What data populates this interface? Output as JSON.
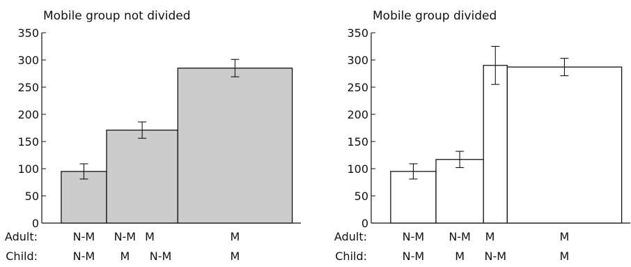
{
  "chart_data": [
    {
      "type": "bar",
      "title": "Mobile group not divided",
      "ylim": [
        0,
        350
      ],
      "yticks": [
        0,
        50,
        100,
        150,
        200,
        250,
        300,
        350
      ],
      "x_range": [
        0,
        12
      ],
      "bars": [
        {
          "x_start": 0.9,
          "x_end": 3.0,
          "value": 95,
          "error": 14
        },
        {
          "x_start": 3.0,
          "x_end": 6.3,
          "value": 171,
          "error": 15
        },
        {
          "x_start": 6.3,
          "x_end": 11.6,
          "value": 285,
          "error": 16
        }
      ],
      "bar_color": "#cccccc",
      "row_labels": [
        "Adult:",
        "Child:"
      ],
      "category_labels": [
        {
          "row": 0,
          "x": 1.95,
          "text": "N-M"
        },
        {
          "row": 0,
          "x": 3.85,
          "text": "N-M"
        },
        {
          "row": 0,
          "x": 5.0,
          "text": "M"
        },
        {
          "row": 0,
          "x": 8.95,
          "text": "M"
        },
        {
          "row": 1,
          "x": 1.95,
          "text": "N-M"
        },
        {
          "row": 1,
          "x": 3.85,
          "text": "M"
        },
        {
          "row": 1,
          "x": 5.5,
          "text": "N-M"
        },
        {
          "row": 1,
          "x": 8.95,
          "text": "M"
        }
      ]
    },
    {
      "type": "bar",
      "title": "Mobile group divided",
      "ylim": [
        0,
        350
      ],
      "yticks": [
        0,
        50,
        100,
        150,
        200,
        250,
        300,
        350
      ],
      "x_range": [
        0,
        12
      ],
      "bars": [
        {
          "x_start": 0.9,
          "x_end": 3.0,
          "value": 95,
          "error": 14
        },
        {
          "x_start": 3.0,
          "x_end": 5.2,
          "value": 117,
          "error": 15
        },
        {
          "x_start": 5.2,
          "x_end": 6.3,
          "value": 290,
          "error": 35
        },
        {
          "x_start": 6.3,
          "x_end": 11.6,
          "value": 287,
          "error": 16
        }
      ],
      "bar_color": "#ffffff",
      "row_labels": [
        "Adult:",
        "Child:"
      ],
      "category_labels": [
        {
          "row": 0,
          "x": 1.95,
          "text": "N-M"
        },
        {
          "row": 0,
          "x": 4.1,
          "text": "N-M"
        },
        {
          "row": 0,
          "x": 5.5,
          "text": "M"
        },
        {
          "row": 0,
          "x": 8.95,
          "text": "M"
        },
        {
          "row": 1,
          "x": 1.95,
          "text": "N-M"
        },
        {
          "row": 1,
          "x": 4.1,
          "text": "M"
        },
        {
          "row": 1,
          "x": 5.75,
          "text": "N-M"
        },
        {
          "row": 1,
          "x": 8.95,
          "text": "M"
        }
      ]
    }
  ]
}
